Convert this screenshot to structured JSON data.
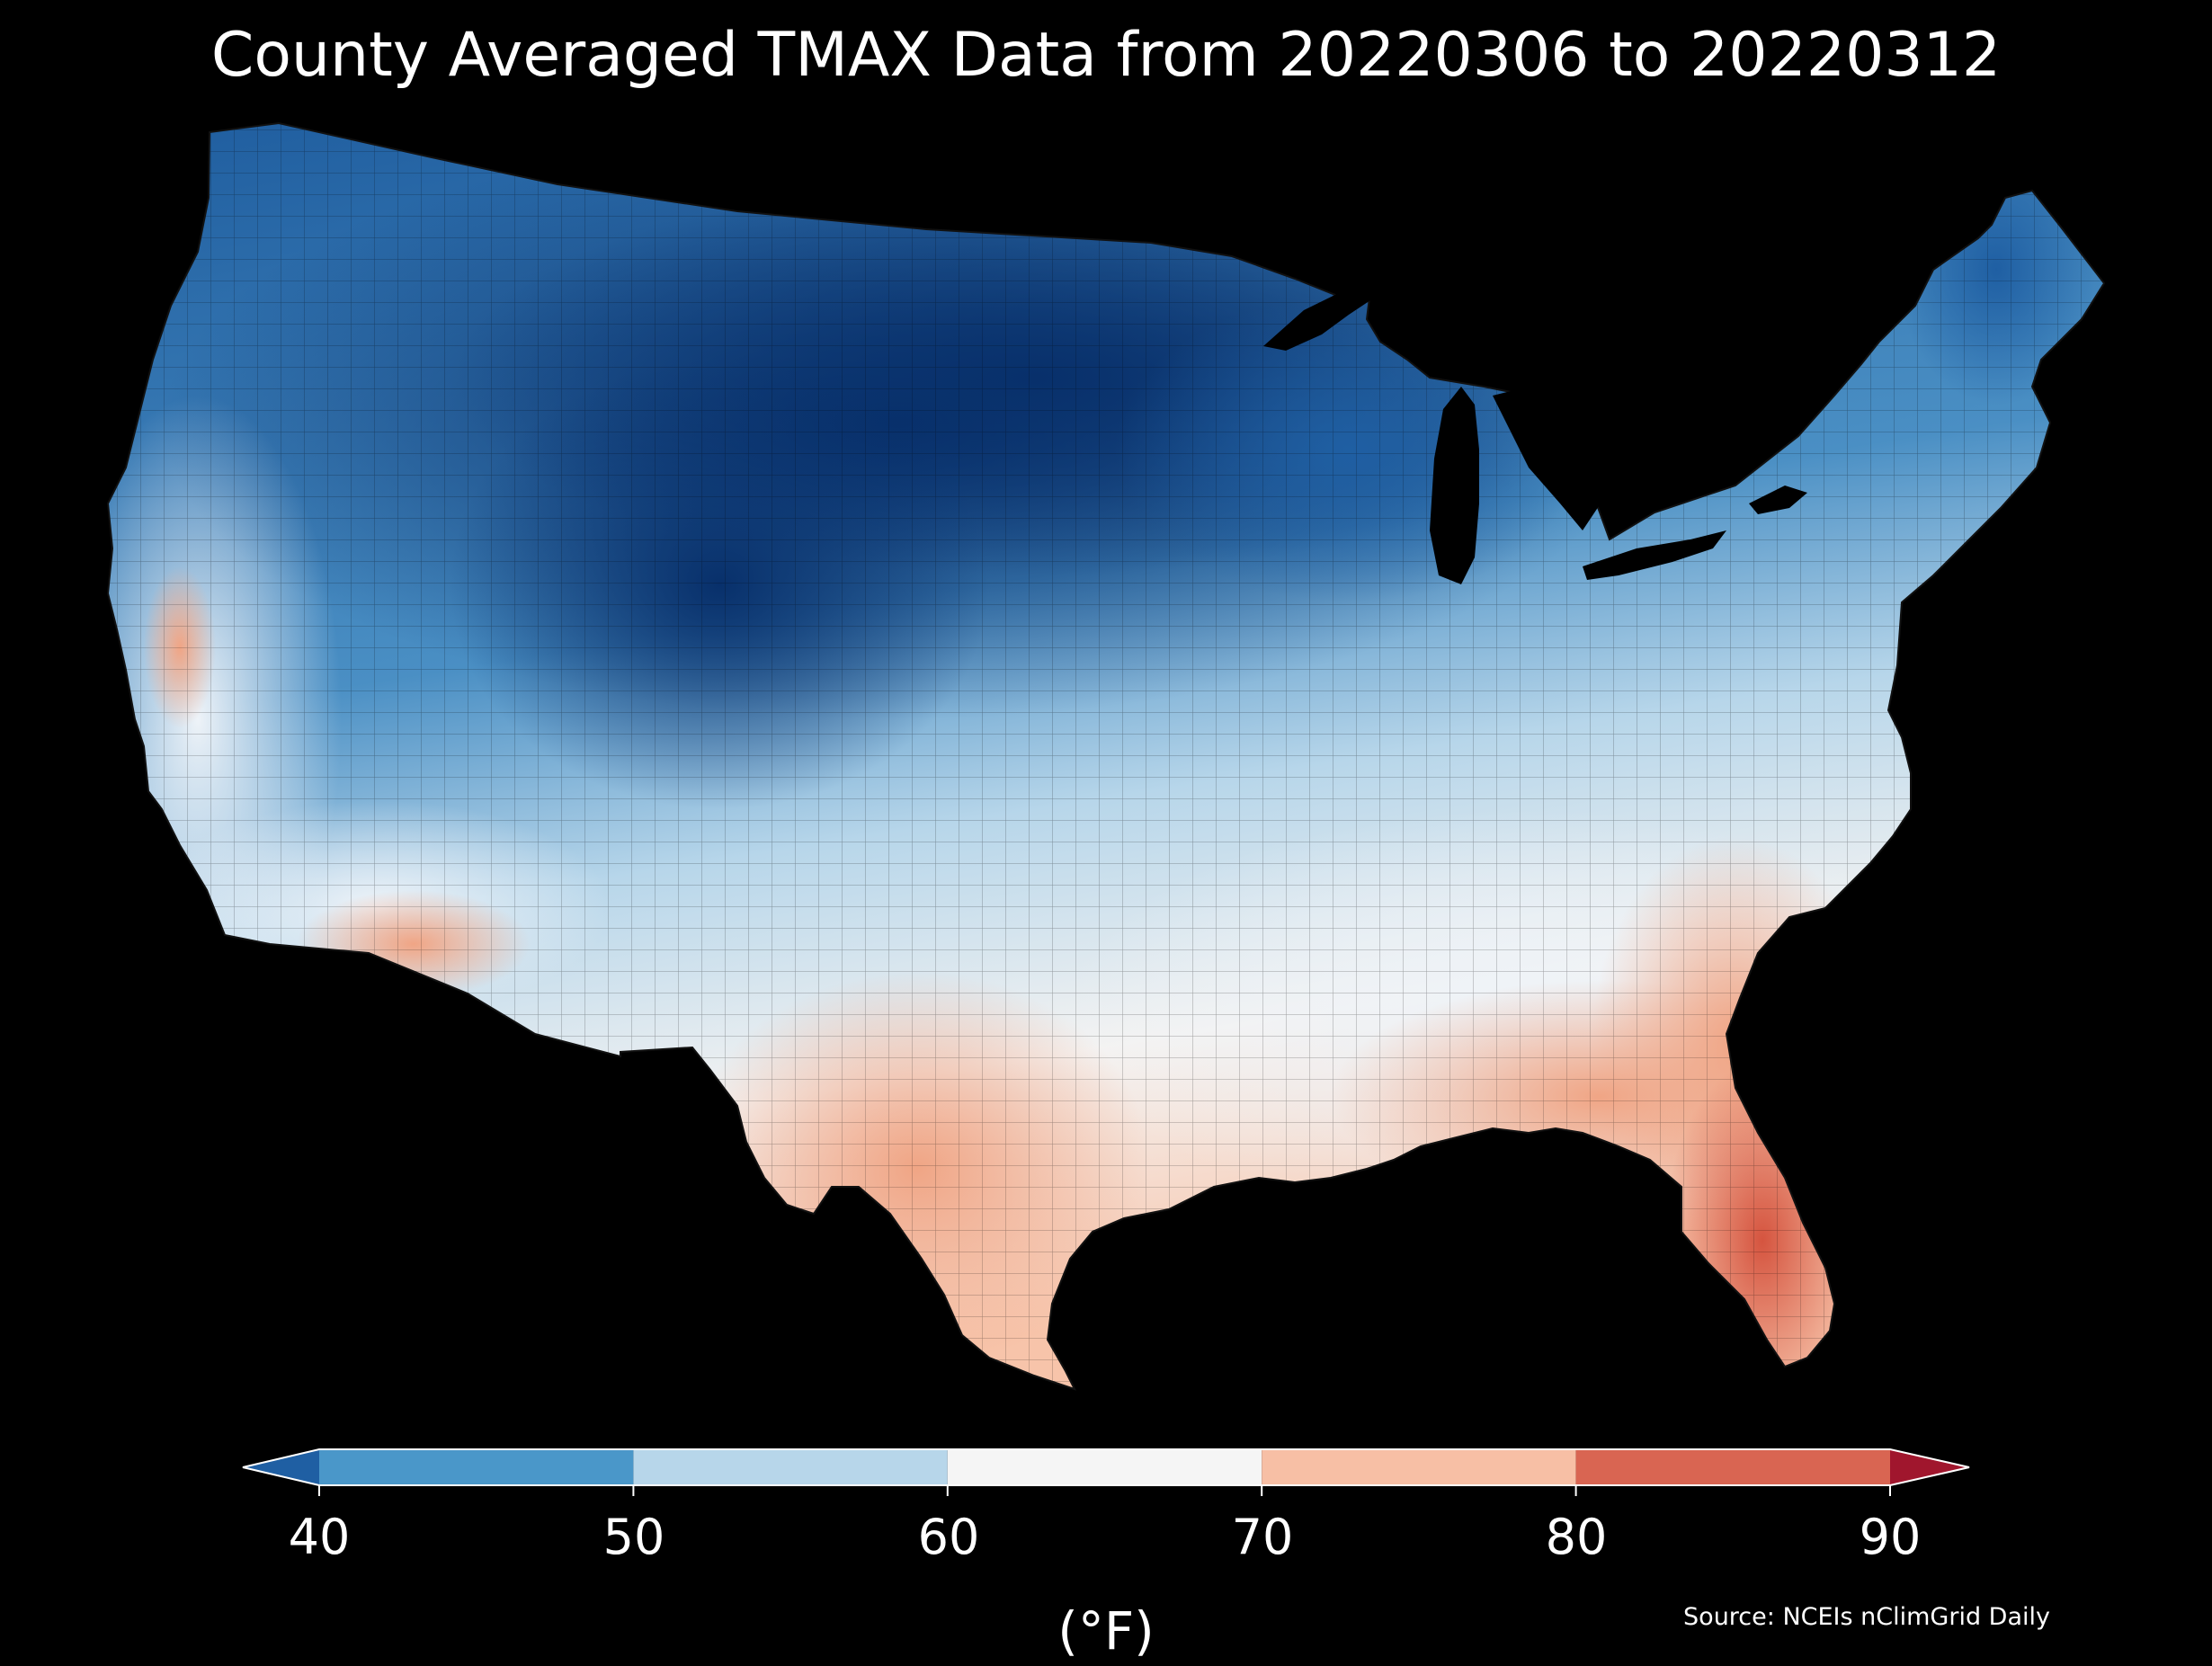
{
  "title": "County Averaged TMAX Data from 20220306 to 20220312",
  "source": "Source: NCEIs nClimGrid Daily",
  "colorbar": {
    "label": "(°F)",
    "ticks": [
      "40",
      "50",
      "60",
      "70",
      "80",
      "90"
    ],
    "extend": "both",
    "bins": [
      {
        "range": [
          null,
          40
        ],
        "color": "#1f5fa3"
      },
      {
        "range": [
          40,
          50
        ],
        "color": "#4a97c9"
      },
      {
        "range": [
          50,
          60
        ],
        "color": "#b7d6ea"
      },
      {
        "range": [
          60,
          70
        ],
        "color": "#f5f5f5"
      },
      {
        "range": [
          70,
          80
        ],
        "color": "#f7bfa5"
      },
      {
        "range": [
          80,
          90
        ],
        "color": "#d96552"
      },
      {
        "range": [
          90,
          null
        ],
        "color": "#a0162d"
      }
    ]
  },
  "map": {
    "region": "Contiguous United States, county level",
    "variable": "TMAX",
    "palette": {
      "coldest": "#08306b",
      "cold": "#1f5fa3",
      "cool": "#4a97c9",
      "mild": "#b7d6ea",
      "neutral": "#f5f5f5",
      "warm": "#f7bfa5",
      "hot": "#d96552"
    }
  }
}
